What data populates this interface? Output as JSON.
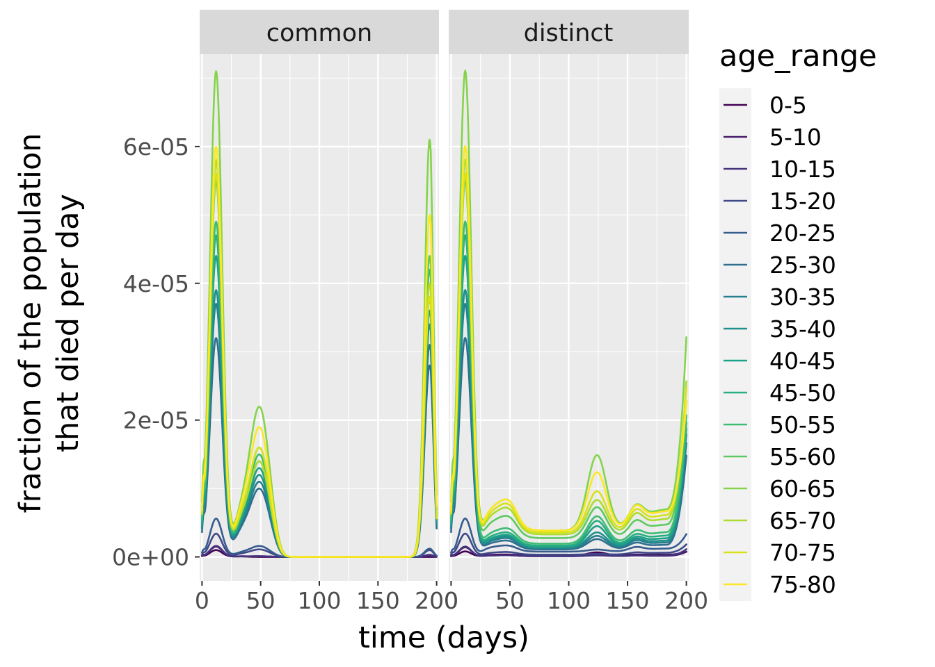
{
  "chart_data": {
    "type": "line",
    "facet_labels": [
      "common",
      "distinct"
    ],
    "xlabel": "time (days)",
    "ylabel": [
      "fraction of the population",
      "that died per day"
    ],
    "xlim": [
      -2,
      202
    ],
    "ylim": [
      -3.5e-06,
      7.35e-05
    ],
    "x_ticks": [
      0,
      50,
      100,
      150,
      200
    ],
    "x_tick_labels": [
      "0",
      "50",
      "100",
      "150",
      "200"
    ],
    "y_ticks": [
      0,
      2e-05,
      4e-05,
      6e-05
    ],
    "y_tick_labels": [
      "0e+00",
      "2e-05",
      "4e-05",
      "6e-05"
    ],
    "grid": true,
    "legend": {
      "title": "age_range",
      "placement": "right"
    },
    "series": [
      {
        "name": "0-5",
        "color": "#440154",
        "peak": [
          1.0,
          0.8
        ],
        "mid": [
          0.3,
          0.3
        ],
        "late": [
          0.0,
          0.5
        ],
        "endv": [
          0.0,
          0.3
        ],
        "extra": [
          0,
          0
        ],
        "bump": [
          0,
          0
        ],
        "end_rise": [
          0.4,
          0.4
        ]
      },
      {
        "name": "5-10",
        "color": "#481B6D",
        "peak": [
          1.6,
          1.5
        ],
        "mid": [
          0.3,
          0.2
        ],
        "late": [
          0.1,
          0.2
        ],
        "endv": [
          0.3,
          0.1
        ],
        "extra": [
          0,
          0
        ],
        "bump": [
          0,
          0
        ],
        "end_rise": [
          0.6,
          0.6
        ]
      },
      {
        "name": "10-15",
        "color": "#46337E",
        "peak": [
          1.5,
          1.4
        ],
        "mid": [
          0.2,
          0.2
        ],
        "late": [
          0.1,
          0.1
        ],
        "endv": [
          0.2,
          0.2
        ],
        "extra": [
          0,
          0
        ],
        "bump": [
          0,
          0
        ],
        "end_rise": [
          0.9,
          0.9
        ]
      },
      {
        "name": "15-20",
        "color": "#3F4889",
        "peak": [
          3.4,
          3.4
        ],
        "mid": [
          1.1,
          0.6
        ],
        "late": [
          1.1,
          0.1
        ],
        "endv": [
          1.0,
          0.5
        ],
        "extra": [
          0,
          0
        ],
        "bump": [
          0,
          0
        ],
        "end_rise": [
          1.2,
          1.2
        ]
      },
      {
        "name": "20-25",
        "color": "#365C8D",
        "peak": [
          5.6,
          5.6
        ],
        "mid": [
          1.6,
          1.4
        ],
        "late": [
          1.6,
          0.3
        ],
        "endv": [
          1.2,
          0.8
        ],
        "extra": [
          0,
          0
        ],
        "bump": [
          0,
          0
        ],
        "end_rise": [
          2.1,
          2.1
        ]
      },
      {
        "name": "25-30",
        "color": "#2E6E8E",
        "peak": [
          32.0,
          32.0
        ],
        "mid": [
          9.0,
          2.0
        ],
        "late": [
          10.0,
          1.5
        ],
        "endv": [
          28.0,
          1.2
        ],
        "extra": [
          5.5,
          0
        ],
        "bump": [
          0.3,
          0
        ],
        "end_rise": [
          13.0,
          13.0
        ]
      },
      {
        "name": "30-35",
        "color": "#277F8E",
        "peak": [
          37.0,
          37.0
        ],
        "mid": [
          10.0,
          2.3
        ],
        "late": [
          11.0,
          1.8
        ],
        "endv": [
          31.0,
          1.5
        ],
        "extra": [
          6.5,
          0
        ],
        "bump": [
          0.8,
          0
        ],
        "end_rise": [
          14.5,
          14.5
        ]
      },
      {
        "name": "35-40",
        "color": "#21908C",
        "peak": [
          39.0,
          39.0
        ],
        "mid": [
          10.5,
          2.5
        ],
        "late": [
          12.0,
          2.2
        ],
        "endv": [
          34.0,
          1.8
        ],
        "extra": [
          8.5,
          0
        ],
        "bump": [
          1.5,
          0
        ],
        "end_rise": [
          15.5,
          15.5
        ]
      },
      {
        "name": "40-45",
        "color": "#1FA088",
        "peak": [
          44.0,
          44.0
        ],
        "mid": [
          11.0,
          2.7
        ],
        "late": [
          13.0,
          3.0
        ],
        "endv": [
          36.0,
          2.2
        ],
        "extra": [
          10.0,
          0
        ],
        "bump": [
          3.0,
          0
        ],
        "end_rise": [
          16.0,
          16.0
        ]
      },
      {
        "name": "45-50",
        "color": "#28AE80",
        "peak": [
          47.0,
          47.0
        ],
        "mid": [
          11.5,
          3.0
        ],
        "late": [
          14.0,
          3.6
        ],
        "endv": [
          38.0,
          2.6
        ],
        "extra": [
          0,
          0
        ],
        "bump": [
          5.0,
          0
        ],
        "end_rise": [
          16.5,
          16.5
        ]
      },
      {
        "name": "50-55",
        "color": "#3FBC73",
        "peak": [
          49.0,
          49.0
        ],
        "mid": [
          12.0,
          3.5
        ],
        "late": [
          15.0,
          4.0
        ],
        "endv": [
          42.0,
          3.0
        ],
        "extra": [
          0,
          0
        ],
        "bump": [
          6.0,
          0
        ],
        "end_rise": [
          17.0,
          17.0
        ]
      },
      {
        "name": "55-60",
        "color": "#5EC962",
        "peak": [
          55.0,
          55.0
        ],
        "mid": [
          13.0,
          5.0
        ],
        "late": [
          16.0,
          4.5
        ],
        "endv": [
          44.0,
          3.5
        ],
        "extra": [
          0,
          0
        ],
        "bump": [
          6.5,
          0
        ],
        "end_rise": [
          18.0,
          18.0
        ]
      },
      {
        "name": "60-65",
        "color": "#84D44B",
        "peak": [
          71.0,
          71.0
        ],
        "mid": [
          15.0,
          7.0
        ],
        "late": [
          22.0,
          11.0
        ],
        "endv": [
          61.0,
          5.5
        ],
        "extra": [
          0,
          0
        ],
        "bump": [
          8.0,
          0
        ],
        "end_rise": [
          25.0,
          25.0
        ]
      },
      {
        "name": "65-70",
        "color": "#ADDC30",
        "peak": [
          58.0,
          58.0
        ],
        "mid": [
          13.5,
          6.0
        ],
        "late": [
          14.0,
          5.0
        ],
        "endv": [
          40.0,
          4.0
        ],
        "extra": [
          0,
          0
        ],
        "bump": [
          6.0,
          0
        ],
        "end_rise": [
          20.0,
          20.0
        ]
      },
      {
        "name": "70-75",
        "color": "#D8E219",
        "peak": [
          56.0,
          56.0
        ],
        "mid": [
          14.0,
          6.5
        ],
        "late": [
          16.0,
          6.0
        ],
        "endv": [
          38.0,
          4.5
        ],
        "extra": [
          0,
          0
        ],
        "bump": [
          7.0,
          0
        ],
        "end_rise": [
          18.5,
          18.5
        ]
      },
      {
        "name": "75-80",
        "color": "#FDE725",
        "peak": [
          60.0,
          60.0
        ],
        "mid": [
          15.0,
          7.0
        ],
        "late": [
          19.0,
          8.5
        ],
        "endv": [
          50.0,
          5.0
        ],
        "extra": [
          0,
          0
        ],
        "bump": [
          8.0,
          0
        ],
        "end_rise": [
          16.0,
          16.0
        ]
      }
    ]
  }
}
